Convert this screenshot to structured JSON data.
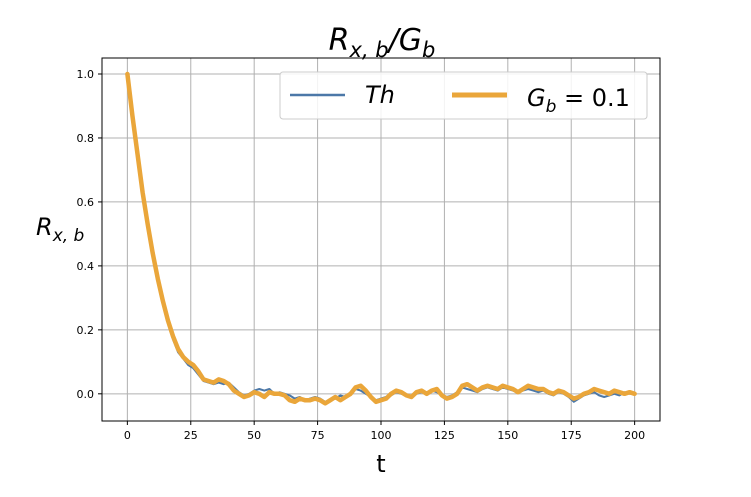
{
  "chart_data": {
    "type": "line",
    "title": "R_{x,b}/G_b",
    "title_parts": {
      "r": "R",
      "r_sub": "x, b",
      "slash": "/",
      "g": "G",
      "g_sub": "b"
    },
    "xlabel": "t",
    "ylabel_parts": {
      "r": "R",
      "r_sub": "x, b"
    },
    "xlim": [
      -10,
      210
    ],
    "ylim": [
      -0.085,
      1.05
    ],
    "xticks": [
      0,
      25,
      50,
      75,
      100,
      125,
      150,
      175,
      200
    ],
    "xtick_labels": [
      "0",
      "25",
      "50",
      "75",
      "100",
      "125",
      "150",
      "175",
      "200"
    ],
    "yticks": [
      0.0,
      0.2,
      0.4,
      0.6,
      0.8,
      1.0
    ],
    "ytick_labels": [
      "0.0",
      "0.2",
      "0.4",
      "0.6",
      "0.8",
      "1.0"
    ],
    "grid": true,
    "legend_position": "top-right",
    "series": [
      {
        "name": "Th",
        "legend_text": "Th",
        "color": "#4c78a8",
        "x": [
          0,
          2,
          4,
          6,
          8,
          10,
          12,
          14,
          16,
          18,
          20,
          22,
          24,
          26,
          28,
          30,
          32,
          34,
          36,
          38,
          40,
          42,
          44,
          46,
          48,
          50,
          52,
          54,
          56,
          58,
          60,
          62,
          64,
          66,
          68,
          70,
          72,
          74,
          76,
          78,
          80,
          82,
          84,
          86,
          88,
          90,
          92,
          94,
          96,
          98,
          100,
          102,
          104,
          106,
          108,
          110,
          112,
          114,
          116,
          118,
          120,
          122,
          124,
          126,
          128,
          130,
          132,
          134,
          136,
          138,
          140,
          142,
          144,
          146,
          148,
          150,
          152,
          154,
          156,
          158,
          160,
          162,
          164,
          166,
          168,
          170,
          172,
          174,
          176,
          178,
          180,
          182,
          184,
          186,
          188,
          190,
          192,
          194,
          196,
          198,
          200
        ],
        "y": [
          1.0,
          0.86,
          0.74,
          0.62,
          0.52,
          0.43,
          0.35,
          0.28,
          0.22,
          0.17,
          0.13,
          0.11,
          0.09,
          0.08,
          0.06,
          0.04,
          0.035,
          0.03,
          0.035,
          0.03,
          0.035,
          0.02,
          0.005,
          -0.005,
          0.0,
          0.01,
          0.015,
          0.01,
          0.015,
          0.0,
          0.005,
          0.0,
          -0.005,
          -0.015,
          -0.01,
          -0.02,
          -0.015,
          -0.01,
          -0.015,
          -0.025,
          -0.02,
          -0.015,
          -0.005,
          -0.01,
          0.0,
          0.015,
          0.01,
          0.0,
          -0.01,
          -0.02,
          -0.015,
          -0.01,
          -0.005,
          0.005,
          0.0,
          -0.005,
          -0.01,
          0.0,
          0.005,
          0.0,
          0.01,
          0.005,
          -0.005,
          -0.01,
          -0.005,
          0.005,
          0.02,
          0.015,
          0.01,
          0.005,
          0.015,
          0.02,
          0.015,
          0.01,
          0.02,
          0.015,
          0.01,
          0.005,
          0.01,
          0.015,
          0.01,
          0.005,
          0.01,
          0.0,
          -0.005,
          0.005,
          0.0,
          -0.01,
          -0.025,
          -0.015,
          -0.005,
          0.0,
          0.005,
          -0.005,
          -0.01,
          -0.005,
          0.0,
          -0.005,
          0.005,
          0.0,
          0.0
        ]
      },
      {
        "name": "G_b = 0.1",
        "legend_parts": {
          "g": "G",
          "g_sub": "b",
          "eq": " = 0.1"
        },
        "color": "#eaa63a",
        "x": [
          0,
          2,
          4,
          6,
          8,
          10,
          12,
          14,
          16,
          18,
          20,
          22,
          24,
          26,
          28,
          30,
          32,
          34,
          36,
          38,
          40,
          42,
          44,
          46,
          48,
          50,
          52,
          54,
          56,
          58,
          60,
          62,
          64,
          66,
          68,
          70,
          72,
          74,
          76,
          78,
          80,
          82,
          84,
          86,
          88,
          90,
          92,
          94,
          96,
          98,
          100,
          102,
          104,
          106,
          108,
          110,
          112,
          114,
          116,
          118,
          120,
          122,
          124,
          126,
          128,
          130,
          132,
          134,
          136,
          138,
          140,
          142,
          144,
          146,
          148,
          150,
          152,
          154,
          156,
          158,
          160,
          162,
          164,
          166,
          168,
          170,
          172,
          174,
          176,
          178,
          180,
          182,
          184,
          186,
          188,
          190,
          192,
          194,
          196,
          198,
          200
        ],
        "y": [
          1.0,
          0.87,
          0.75,
          0.63,
          0.53,
          0.44,
          0.36,
          0.29,
          0.23,
          0.18,
          0.14,
          0.115,
          0.1,
          0.09,
          0.07,
          0.045,
          0.04,
          0.035,
          0.045,
          0.04,
          0.03,
          0.01,
          0.0,
          -0.01,
          -0.005,
          0.005,
          0.0,
          -0.01,
          0.005,
          0.0,
          0.0,
          -0.005,
          -0.02,
          -0.025,
          -0.015,
          -0.02,
          -0.02,
          -0.015,
          -0.02,
          -0.03,
          -0.02,
          -0.01,
          -0.02,
          -0.01,
          0.0,
          0.02,
          0.025,
          0.01,
          -0.01,
          -0.025,
          -0.02,
          -0.015,
          0.0,
          0.01,
          0.005,
          -0.005,
          -0.01,
          0.005,
          0.01,
          0.0,
          0.01,
          0.015,
          -0.005,
          -0.015,
          -0.01,
          0.0,
          0.025,
          0.03,
          0.02,
          0.01,
          0.02,
          0.025,
          0.02,
          0.015,
          0.025,
          0.02,
          0.015,
          0.005,
          0.015,
          0.025,
          0.02,
          0.015,
          0.015,
          0.005,
          0.0,
          0.01,
          0.005,
          -0.005,
          -0.015,
          -0.01,
          0.0,
          0.005,
          0.015,
          0.01,
          0.005,
          0.0,
          0.01,
          0.005,
          0.0,
          0.005,
          0.0
        ]
      }
    ]
  }
}
